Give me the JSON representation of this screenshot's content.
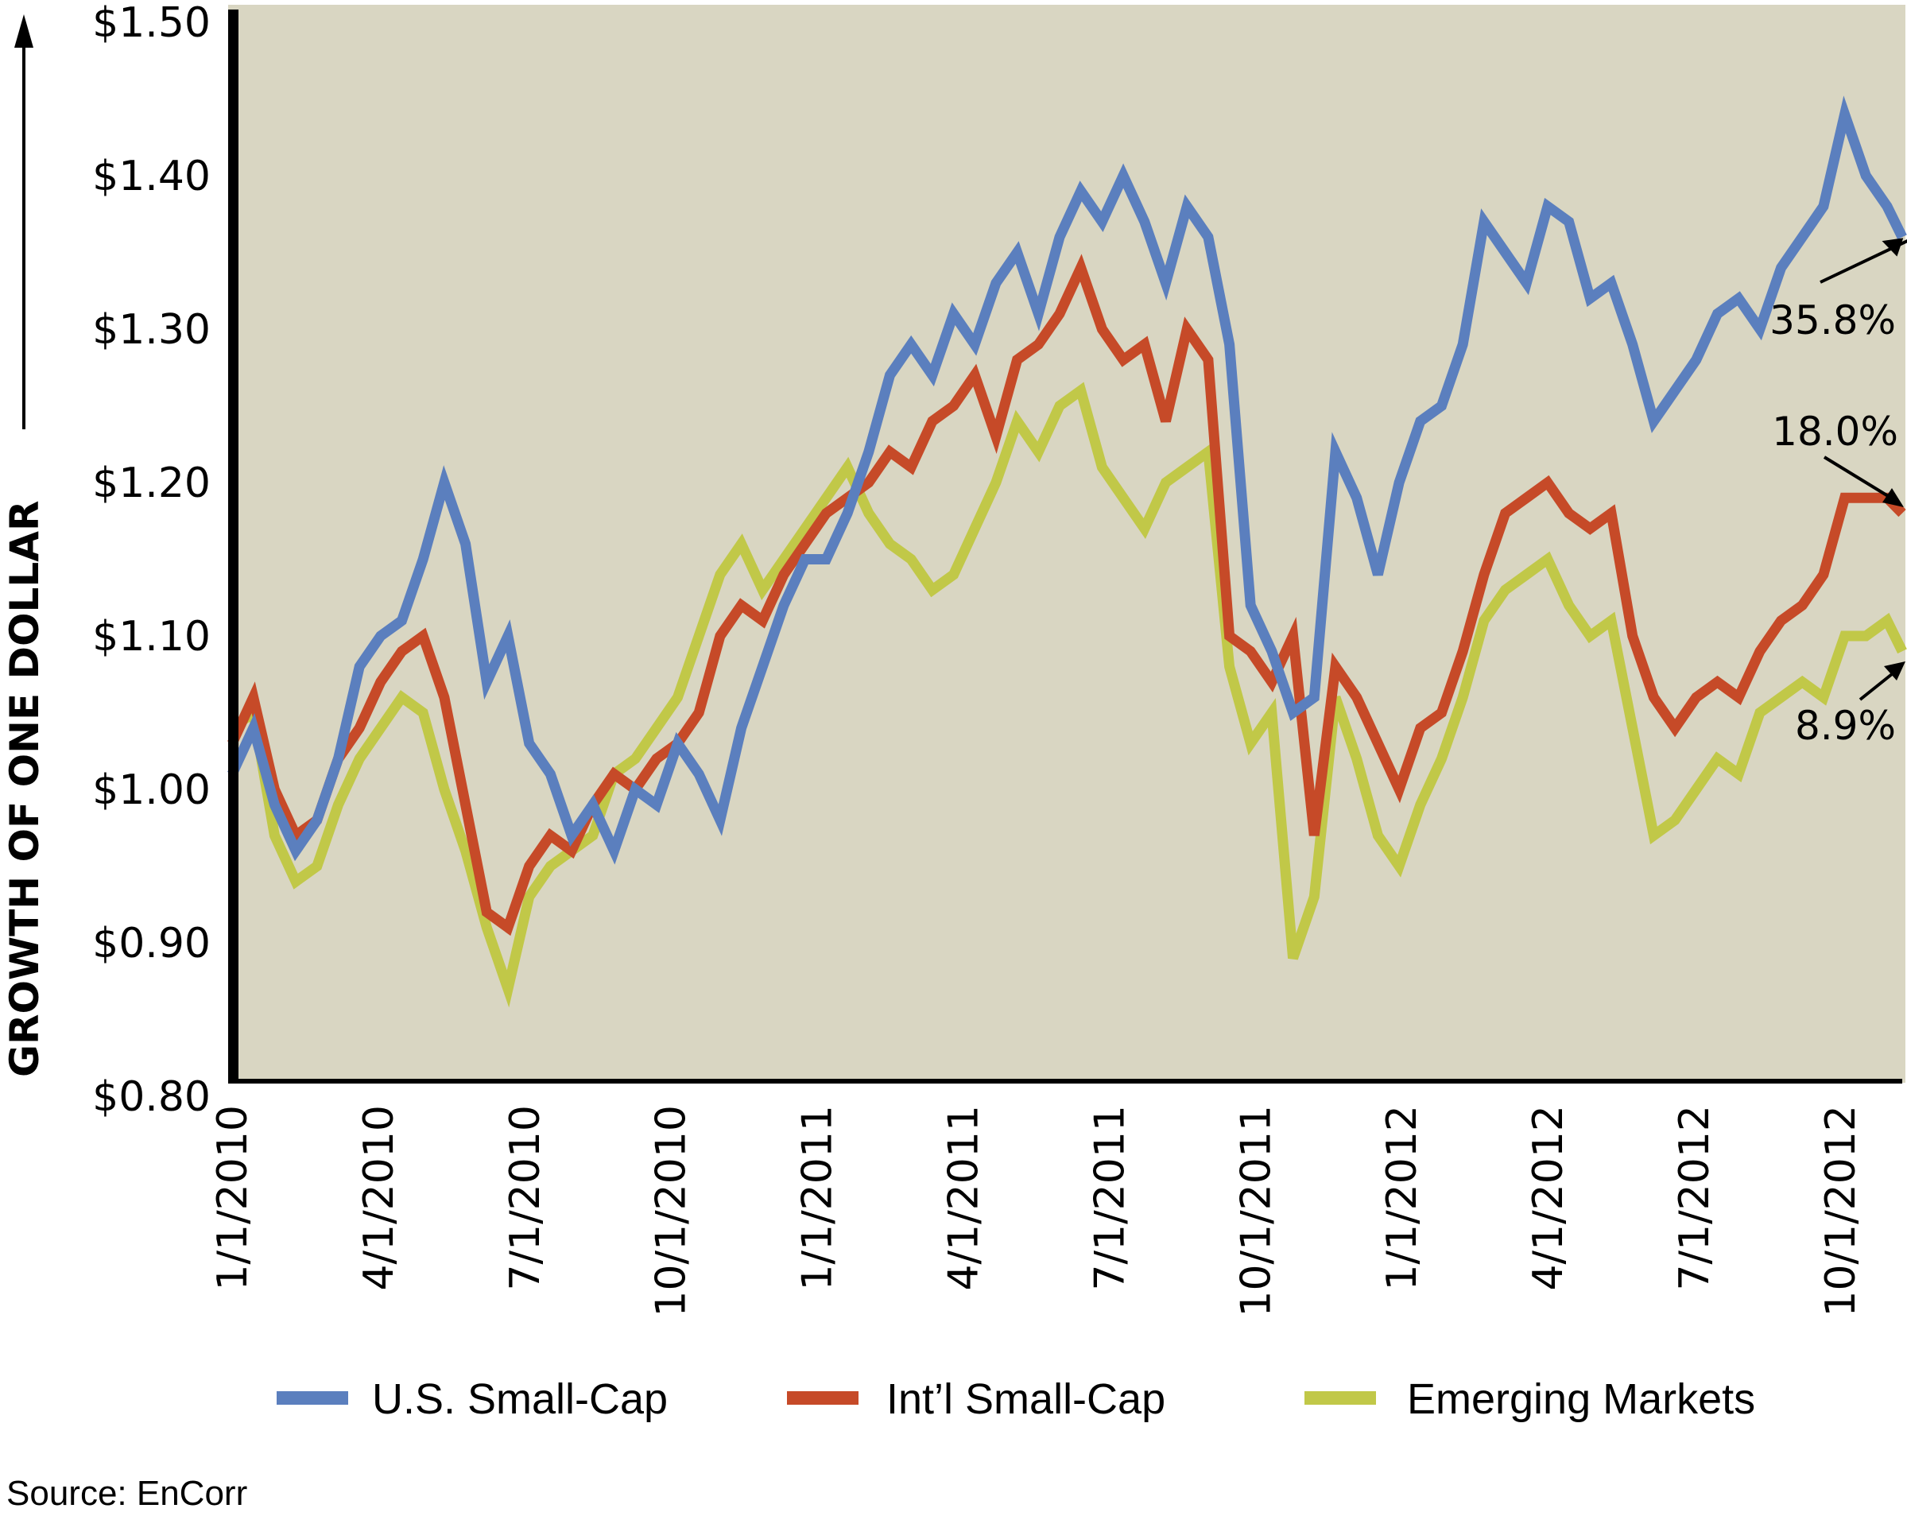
{
  "chart_data": {
    "type": "line",
    "title": "",
    "ylabel": "GROWTH OF ONE DOLLAR",
    "xlabel": "",
    "ylim": [
      0.8,
      1.5
    ],
    "y_ticks": [
      "$0.80",
      "$0.90",
      "$1.00",
      "$1.10",
      "$1.20",
      "$1.30",
      "$1.40",
      "$1.50"
    ],
    "y_tick_values": [
      0.8,
      0.9,
      1.0,
      1.1,
      1.2,
      1.3,
      1.4,
      1.5
    ],
    "x_ticks": [
      "1/1/2010",
      "4/1/2010",
      "7/1/2010",
      "10/1/2010",
      "1/1/2011",
      "4/1/2011",
      "7/1/2011",
      "10/1/2011",
      "1/1/2012",
      "4/1/2012",
      "7/1/2012",
      "10/1/2012"
    ],
    "x_tick_months": [
      0,
      3,
      6,
      9,
      12,
      15,
      18,
      21,
      24,
      27,
      30,
      33
    ],
    "x_range_months": [
      0,
      34.4
    ],
    "x_step_months": 0.5,
    "grid": false,
    "legend_position": "bottom",
    "series": [
      {
        "name": "U.S. Small-Cap",
        "color": "#5b7fbe",
        "values": [
          1.01,
          1.04,
          0.99,
          0.96,
          0.98,
          1.02,
          1.08,
          1.1,
          1.11,
          1.15,
          1.2,
          1.16,
          1.07,
          1.1,
          1.03,
          1.01,
          0.97,
          0.99,
          0.96,
          1.0,
          0.99,
          1.03,
          1.01,
          0.98,
          1.04,
          1.08,
          1.12,
          1.15,
          1.15,
          1.18,
          1.22,
          1.27,
          1.29,
          1.27,
          1.31,
          1.29,
          1.33,
          1.35,
          1.31,
          1.36,
          1.39,
          1.37,
          1.4,
          1.37,
          1.33,
          1.38,
          1.36,
          1.29,
          1.12,
          1.09,
          1.05,
          1.06,
          1.22,
          1.19,
          1.14,
          1.2,
          1.24,
          1.25,
          1.29,
          1.37,
          1.35,
          1.33,
          1.38,
          1.37,
          1.32,
          1.33,
          1.29,
          1.24,
          1.26,
          1.28,
          1.31,
          1.32,
          1.3,
          1.34,
          1.36,
          1.38,
          1.44,
          1.4,
          1.38,
          1.36
        ]
      },
      {
        "name": "Int'l Small-Cap",
        "color": "#c64a28",
        "values": [
          1.03,
          1.06,
          1.0,
          0.97,
          0.98,
          1.02,
          1.04,
          1.07,
          1.09,
          1.1,
          1.06,
          0.99,
          0.92,
          0.91,
          0.95,
          0.97,
          0.96,
          0.99,
          1.01,
          1.0,
          1.02,
          1.03,
          1.05,
          1.1,
          1.12,
          1.11,
          1.14,
          1.16,
          1.18,
          1.19,
          1.2,
          1.22,
          1.21,
          1.24,
          1.25,
          1.27,
          1.23,
          1.28,
          1.29,
          1.31,
          1.34,
          1.3,
          1.28,
          1.29,
          1.24,
          1.3,
          1.28,
          1.1,
          1.09,
          1.07,
          1.1,
          0.97,
          1.08,
          1.06,
          1.03,
          1.0,
          1.04,
          1.05,
          1.09,
          1.14,
          1.18,
          1.19,
          1.2,
          1.18,
          1.17,
          1.18,
          1.1,
          1.06,
          1.04,
          1.06,
          1.07,
          1.06,
          1.09,
          1.11,
          1.12,
          1.14,
          1.19,
          1.19,
          1.19,
          1.18
        ]
      },
      {
        "name": "Emerging Markets",
        "color": "#c1c848",
        "values": [
          1.04,
          1.05,
          0.97,
          0.94,
          0.95,
          0.99,
          1.02,
          1.04,
          1.06,
          1.05,
          1.0,
          0.96,
          0.91,
          0.87,
          0.93,
          0.95,
          0.96,
          0.97,
          1.01,
          1.02,
          1.04,
          1.06,
          1.1,
          1.14,
          1.16,
          1.13,
          1.15,
          1.17,
          1.19,
          1.21,
          1.18,
          1.16,
          1.15,
          1.13,
          1.14,
          1.17,
          1.2,
          1.24,
          1.22,
          1.25,
          1.26,
          1.21,
          1.19,
          1.17,
          1.2,
          1.21,
          1.22,
          1.08,
          1.03,
          1.05,
          0.89,
          0.93,
          1.06,
          1.02,
          0.97,
          0.95,
          0.99,
          1.02,
          1.06,
          1.11,
          1.13,
          1.14,
          1.15,
          1.12,
          1.1,
          1.11,
          1.04,
          0.97,
          0.98,
          1.0,
          1.02,
          1.01,
          1.05,
          1.06,
          1.07,
          1.06,
          1.1,
          1.1,
          1.11,
          1.09
        ]
      }
    ],
    "annotations": [
      {
        "text": "35.8%",
        "series": "U.S. Small-Cap"
      },
      {
        "text": "18.0%",
        "series": "Int'l Small-Cap"
      },
      {
        "text": "8.9%",
        "series": "Emerging Markets"
      }
    ],
    "source": "Source: EnCorr"
  }
}
